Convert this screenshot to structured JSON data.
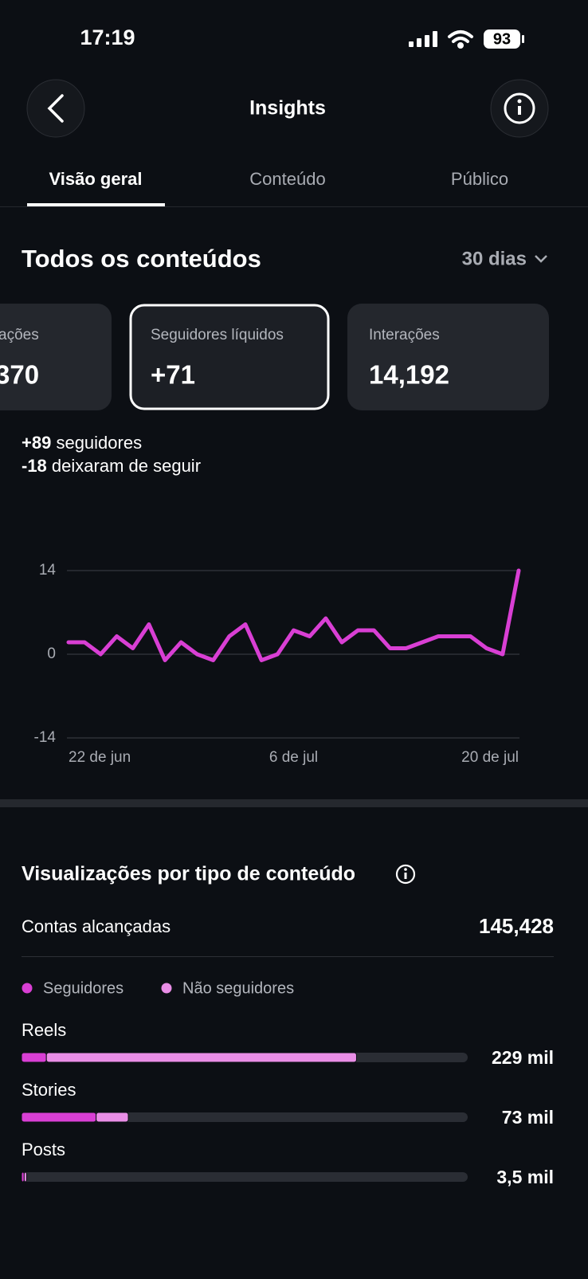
{
  "status_bar": {
    "time": "17:19",
    "battery": "93"
  },
  "header": {
    "title": "Insights"
  },
  "tabs": [
    "Visão geral",
    "Conteúdo",
    "Público"
  ],
  "overview": {
    "title": "Todos os conteúdos",
    "period": "30 dias",
    "cards": [
      {
        "label": "ações",
        "value": "370"
      },
      {
        "label": "Seguidores líquidos",
        "value": "+71"
      },
      {
        "label": "Interações",
        "value": "14,192"
      }
    ],
    "follow_lines": [
      {
        "value": "+89",
        "text": "seguidores"
      },
      {
        "value": "-18",
        "text": "deixaram de seguir"
      }
    ]
  },
  "views": {
    "title": "Visualizações por tipo de conteúdo",
    "reached_label": "Contas alcançadas",
    "reached_value": "145,428"
  },
  "chart_data": [
    {
      "type": "line",
      "categories": [
        "22 de jun",
        null,
        null,
        null,
        null,
        null,
        null,
        null,
        null,
        null,
        null,
        null,
        null,
        null,
        "6 de jul",
        null,
        null,
        null,
        null,
        null,
        null,
        null,
        null,
        null,
        null,
        null,
        null,
        null,
        "20 de jul"
      ],
      "values": [
        2,
        2,
        0,
        3,
        1,
        5,
        -1,
        2,
        0,
        -1,
        3,
        5,
        -1,
        0,
        4,
        3,
        6,
        2,
        4,
        4,
        1,
        1,
        2,
        3,
        3,
        3,
        1,
        0,
        14
      ],
      "color": "#d93fd4",
      "ylim": [
        -14,
        14
      ],
      "yticks": [
        -14,
        0,
        14
      ],
      "grid": true
    },
    {
      "type": "bar",
      "orientation": "horizontal",
      "stacked": true,
      "categories": [
        "Reels",
        "Stories",
        "Posts"
      ],
      "series": [
        {
          "name": "Seguidores",
          "color": "#d93fd4",
          "values": [
            17,
            51,
            1.8
          ]
        },
        {
          "name": "Não seguidores",
          "color": "#e98ee6",
          "values": [
            212,
            22,
            1.7
          ]
        }
      ],
      "totals": [
        229,
        73,
        3.5
      ],
      "total_labels": [
        "229 mil",
        "73 mil",
        "3,5 mil"
      ],
      "xlim": [
        0,
        305
      ]
    }
  ]
}
